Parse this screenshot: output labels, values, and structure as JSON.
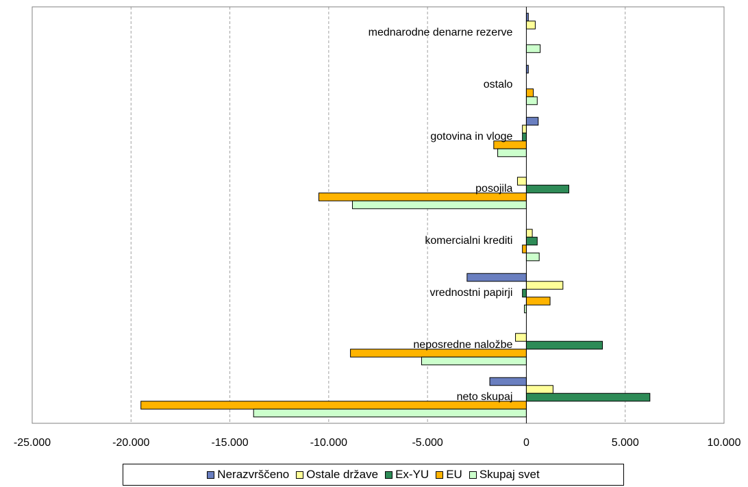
{
  "chart_data": {
    "type": "bar",
    "orientation": "horizontal",
    "categories": [
      "neto skupaj",
      "neposredne naložbe",
      "vrednostni papirji",
      "komercialni krediti",
      "posojila",
      "gotovina in vloge",
      "ostalo",
      "mednarodne denarne rezerve"
    ],
    "series": [
      {
        "name": "Nerazvrščeno",
        "color": "#6a7fc0",
        "values": [
          -1850,
          0,
          -3000,
          0,
          0,
          600,
          100,
          100
        ]
      },
      {
        "name": "Ostale države",
        "color": "#ffff99",
        "values": [
          1350,
          -550,
          1850,
          300,
          -450,
          -200,
          0,
          450
        ]
      },
      {
        "name": "Ex-YU",
        "color": "#2e8b57",
        "values": [
          6250,
          3850,
          -200,
          550,
          2150,
          -200,
          0,
          0
        ]
      },
      {
        "name": "EU",
        "color": "#ffb400",
        "values": [
          -19500,
          -8900,
          1200,
          -200,
          -10500,
          -1650,
          350,
          0
        ]
      },
      {
        "name": "Skupaj svet",
        "color": "#ccffcc",
        "values": [
          -13800,
          -5300,
          -100,
          650,
          -8800,
          -1450,
          550,
          700
        ]
      }
    ],
    "x_ticks": [
      "-25.000",
      "-20.000",
      "-15.000",
      "-10.000",
      "-5.000",
      "0",
      "5.000",
      "10.000"
    ],
    "xlim": [
      -25000,
      10000
    ],
    "grid": "vertical dashed",
    "legend_position": "bottom"
  }
}
